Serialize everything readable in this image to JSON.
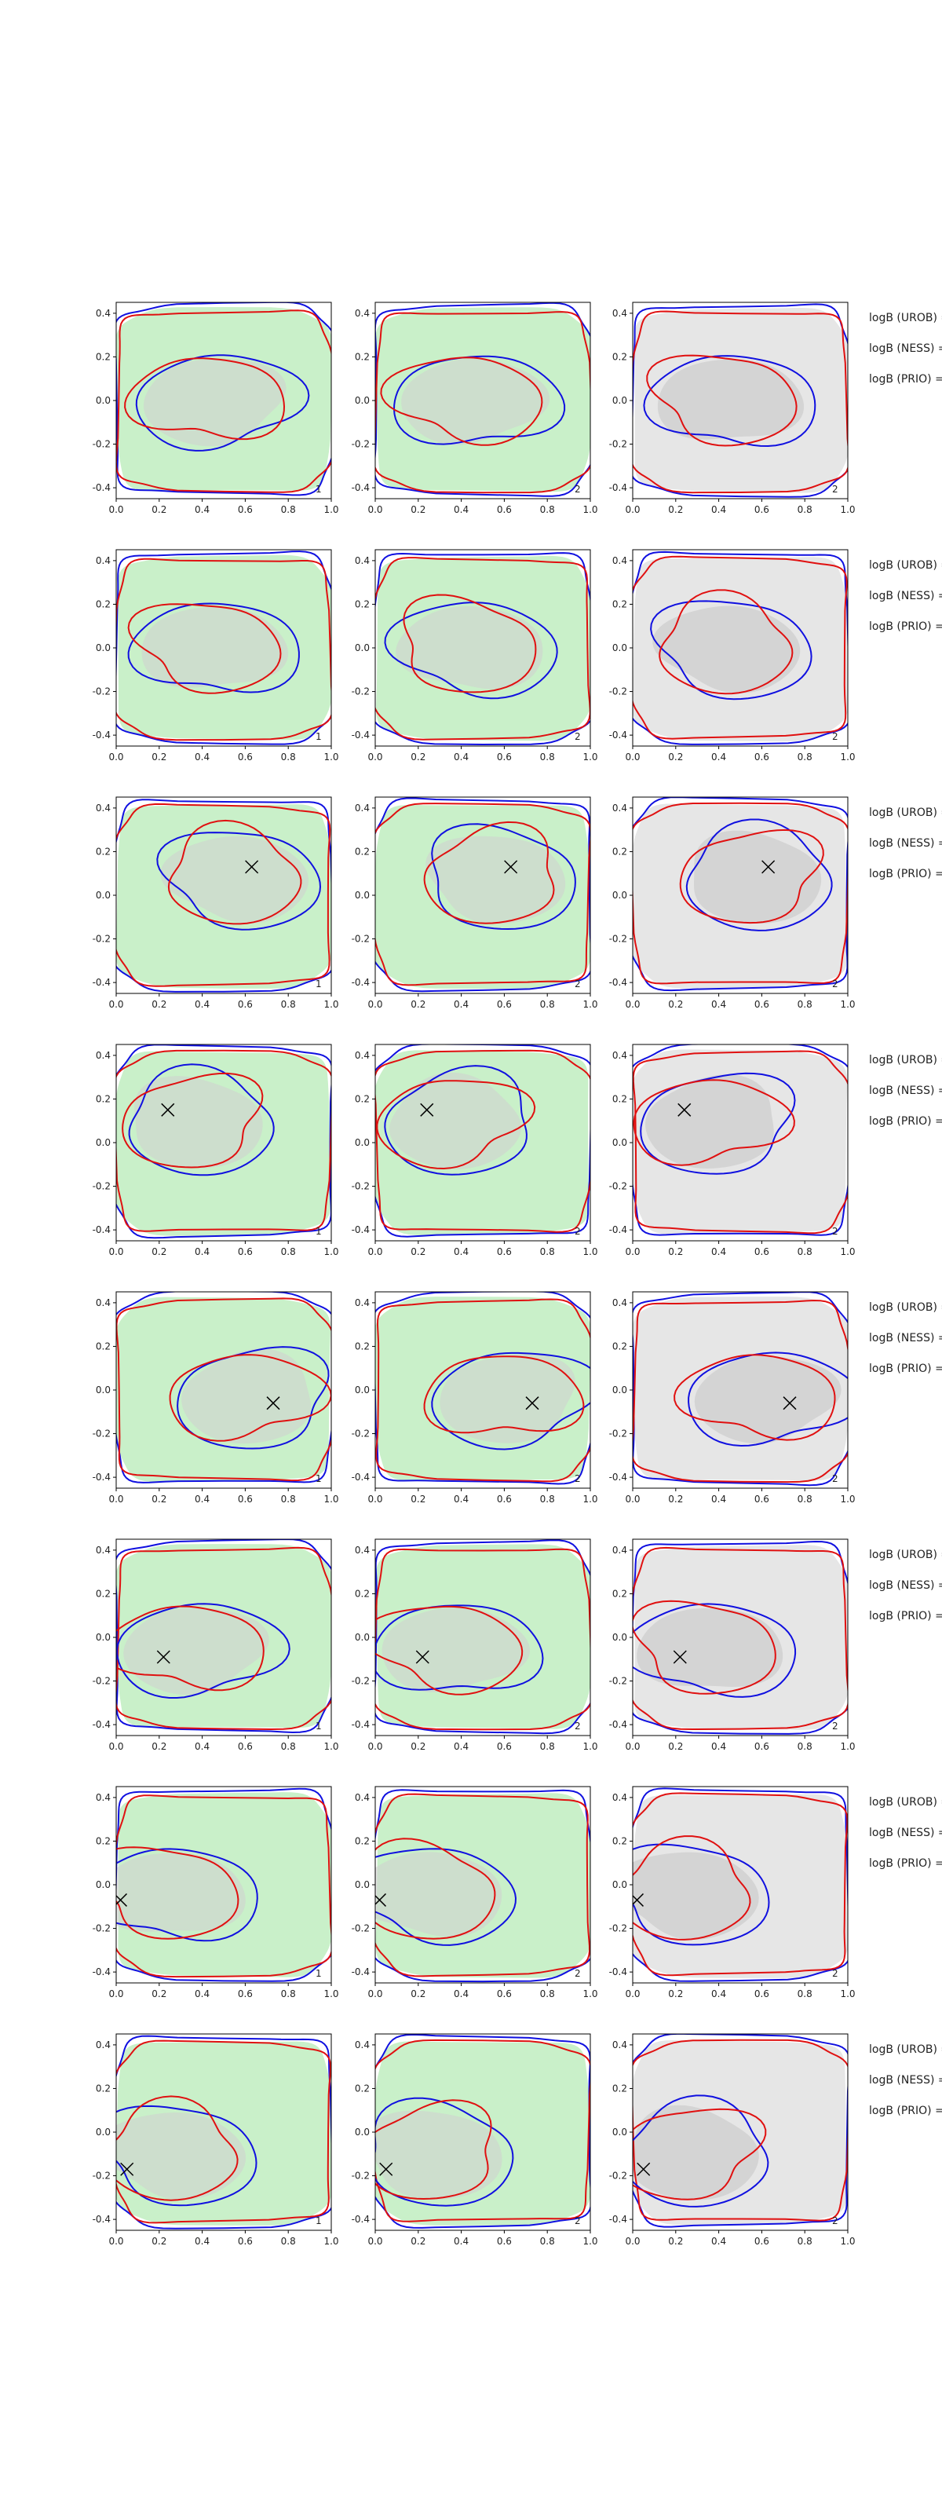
{
  "figure": {
    "background": "#ffffff"
  },
  "chart_data": {
    "type": "scatter",
    "description_of_panels": "8 rows x 3 columns of 2D contour-map panels; columns 1-2 have green filled regions, column 3 has gray filled regions; red and blue contour lines overlay each panel; some rows mark a point with an X",
    "axes": {
      "xlim": [
        0,
        1.0
      ],
      "ylim": [
        -0.45,
        0.45
      ],
      "xticks": [
        "0.0",
        "0.2",
        "0.4",
        "0.6",
        "0.8",
        "1.0"
      ],
      "yticks": [
        "0.4",
        "0.2",
        "0.0",
        "-0.2",
        "-0.4"
      ]
    },
    "colors": {
      "green_fill": "#c9f0c9",
      "gray_fill": "#e6e6e6",
      "inner_fill": "#cfcfcf",
      "red": "#e01010",
      "blue": "#1010e0",
      "frame": "#000000"
    },
    "column_labels": [
      "1",
      "2",
      "2"
    ],
    "row_annotations": [
      "logB (UROB) =",
      "logB (NESS) =",
      "logB (PRIO) ="
    ],
    "rows": [
      {
        "marker": null
      },
      {
        "marker": null
      },
      {
        "marker": {
          "x": 0.63,
          "y": 0.13
        }
      },
      {
        "marker": {
          "x": 0.24,
          "y": 0.15
        }
      },
      {
        "marker": {
          "x": 0.73,
          "y": -0.06
        }
      },
      {
        "marker": {
          "x": 0.22,
          "y": -0.09
        }
      },
      {
        "marker": {
          "x": 0.02,
          "y": -0.07
        }
      },
      {
        "marker": {
          "x": 0.05,
          "y": -0.17
        }
      }
    ]
  }
}
